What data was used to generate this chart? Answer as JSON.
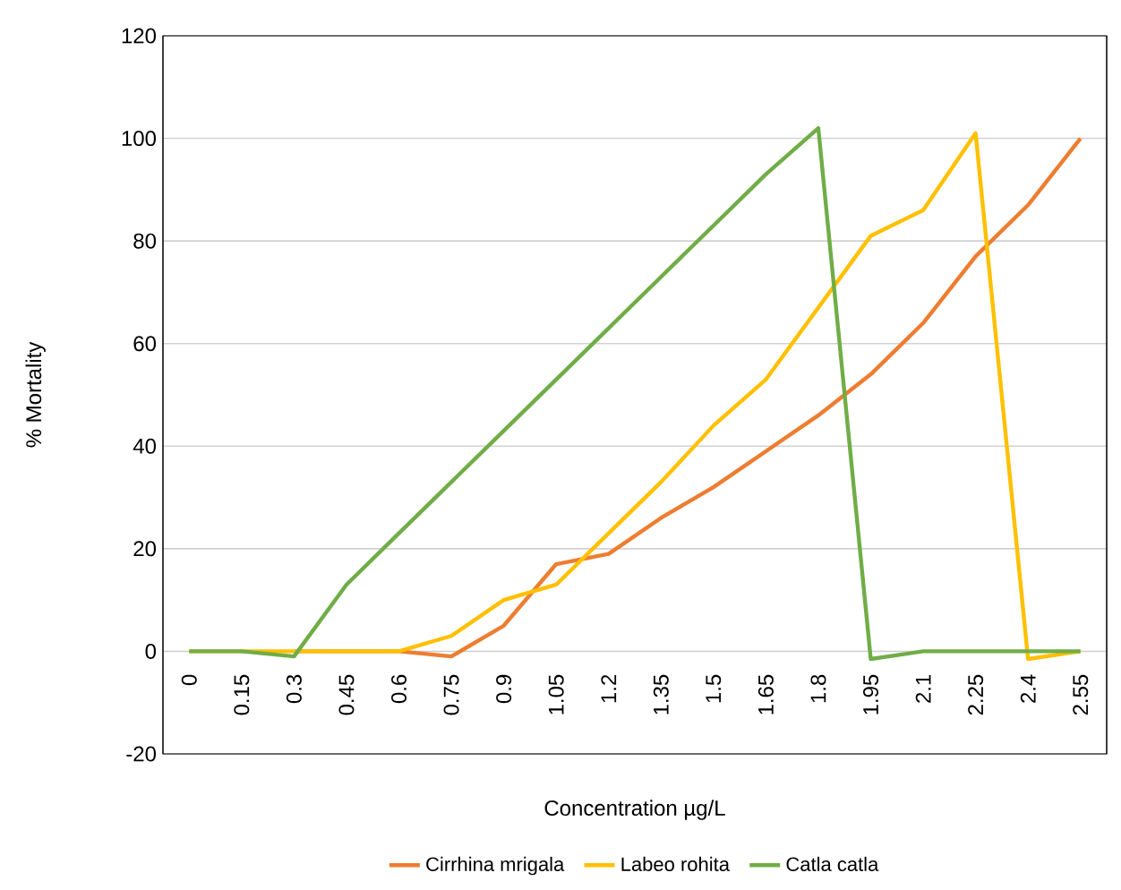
{
  "chart_data": {
    "type": "line",
    "xlabel": "Concentration µg/L",
    "ylabel": "% Mortality",
    "categories": [
      "0",
      "0.15",
      "0.3",
      "0.45",
      "0.6",
      "0.75",
      "0.9",
      "1.05",
      "1.2",
      "1.35",
      "1.5",
      "1.65",
      "1.8",
      "1.95",
      "2.1",
      "2.25",
      "2.4",
      "2.55"
    ],
    "series": [
      {
        "name": "Cirrhina mrigala",
        "color": "#ed7d31",
        "values": [
          null,
          null,
          0,
          0,
          0,
          -1,
          5,
          17,
          19,
          26,
          32,
          39,
          46,
          54,
          64,
          77,
          87,
          100
        ]
      },
      {
        "name": "Labeo rohita",
        "color": "#ffc000",
        "values": [
          0,
          0,
          0,
          0,
          0,
          3,
          10,
          13,
          23,
          33,
          44,
          53,
          67,
          81,
          86,
          101,
          -1.5,
          0
        ]
      },
      {
        "name": "Catla catla",
        "color": "#70ad47",
        "values": [
          0,
          0,
          -1,
          13,
          23,
          33,
          43,
          53,
          63,
          73,
          83,
          93,
          102,
          -1.5,
          0,
          0,
          0,
          0
        ]
      }
    ],
    "ylim": [
      -20,
      120
    ],
    "yticks": [
      -20,
      0,
      20,
      40,
      60,
      80,
      100,
      120
    ],
    "grid": "y",
    "legend": "bottom",
    "marker": "none",
    "line_style": "solid"
  }
}
